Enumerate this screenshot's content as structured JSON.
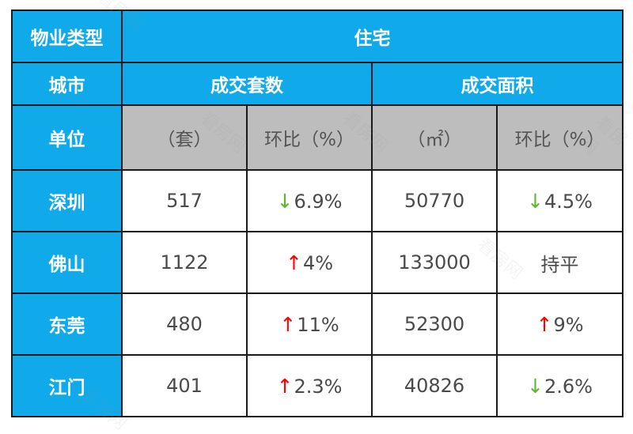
{
  "header": {
    "property_type_label": "物业类型",
    "property_type_value": "住宅",
    "city_label": "城市",
    "volume_label": "成交套数",
    "area_label": "成交面积",
    "unit_label": "单位",
    "unit_volume": "（套）",
    "unit_volume_change": "环比（%）",
    "unit_area": "（㎡）",
    "unit_area_change": "环比（%）"
  },
  "rows": [
    {
      "city": "深圳",
      "volume": "517",
      "volume_change": "6.9%",
      "volume_dir": "down",
      "area": "50770",
      "area_change": "4.5%",
      "area_dir": "down"
    },
    {
      "city": "佛山",
      "volume": "1122",
      "volume_change": "4%",
      "volume_dir": "up",
      "area": "133000",
      "area_change": "持平",
      "area_dir": "none"
    },
    {
      "city": "东莞",
      "volume": "480",
      "volume_change": "11%",
      "volume_dir": "up",
      "area": "52300",
      "area_change": "9%",
      "area_dir": "up"
    },
    {
      "city": "江门",
      "volume": "401",
      "volume_change": "2.3%",
      "volume_dir": "up",
      "area": "40826",
      "area_change": "2.6%",
      "area_dir": "down"
    }
  ],
  "arrows": {
    "up": "↑",
    "down": "↓"
  },
  "colors": {
    "header_blue": "#10aaeb",
    "unit_gray": "#bdbdbd",
    "up": "#ff0000",
    "down": "#5cb82a"
  },
  "watermark": "看房网"
}
